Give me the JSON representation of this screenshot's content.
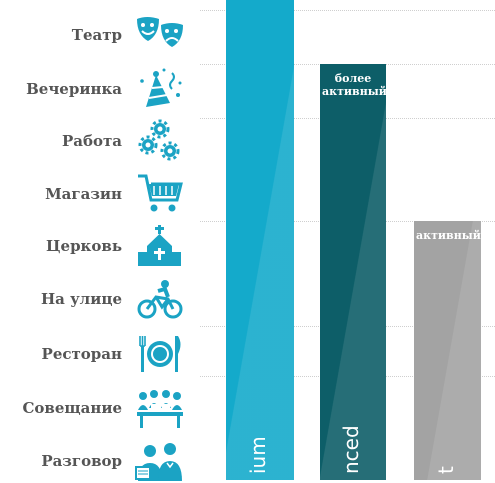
{
  "chart_data": {
    "type": "bar",
    "categories": [
      "Театр",
      "Вечеринка",
      "Работа",
      "Магазин",
      "Церковь",
      "На улице",
      "Ресторан",
      "Совещание",
      "Разговор"
    ],
    "series": [
      {
        "label": "",
        "top_label": "",
        "bottom_label": "ium",
        "top_category": "Театр",
        "color": "#14aacb"
      },
      {
        "label": "",
        "top_label": "более активный",
        "bottom_label": "nced",
        "top_category": "Вечеринка",
        "color": "#0d5e68"
      },
      {
        "label": "",
        "top_label": "активный",
        "bottom_label": "t",
        "top_category": "Церковь",
        "color": "#a3a3a3"
      }
    ],
    "icons": [
      "theater-masks-icon",
      "party-hat-icon",
      "gears-icon",
      "shopping-cart-icon",
      "church-icon",
      "cyclist-icon",
      "plate-cutlery-icon",
      "meeting-icon",
      "conversation-icon"
    ],
    "icon_color": "#1ba3c4"
  }
}
